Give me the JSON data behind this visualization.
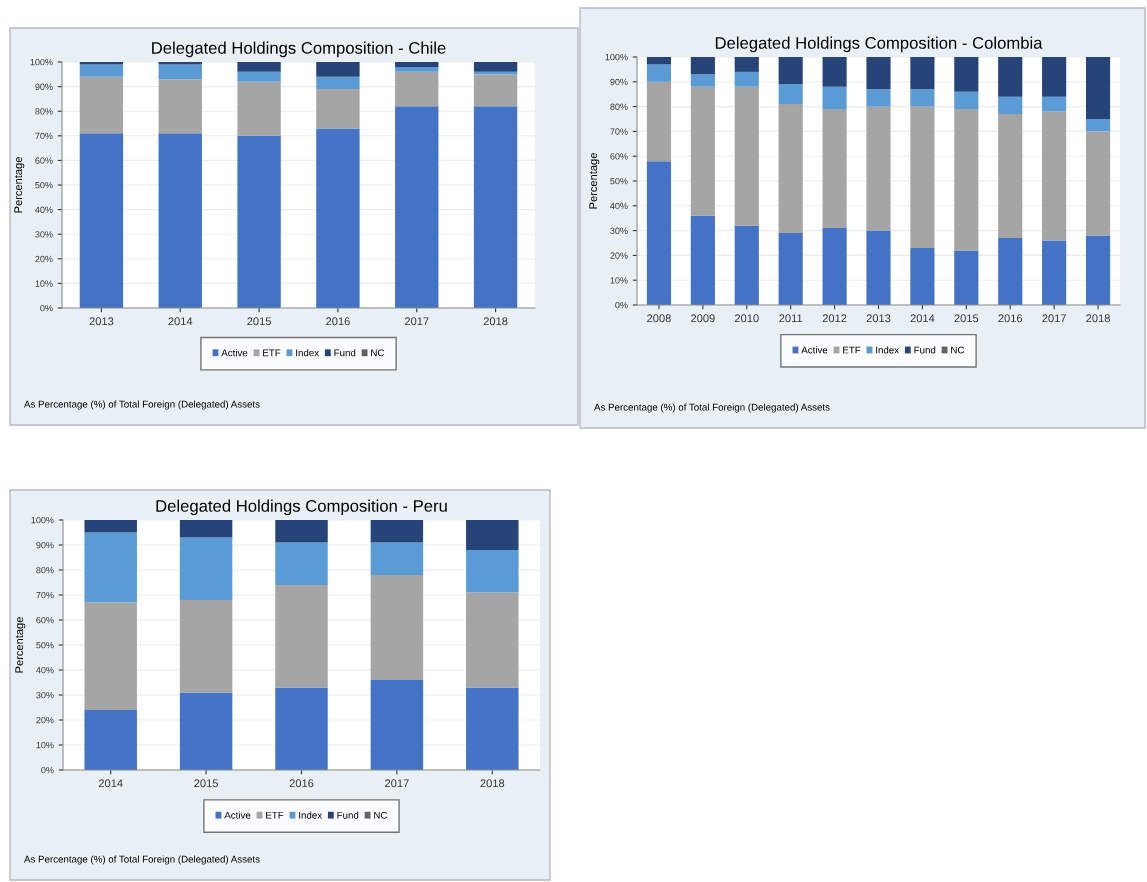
{
  "chart_data": [
    {
      "type": "bar",
      "stacked": true,
      "title": "Delegated Holdings Composition - Chile",
      "ylabel": "Percentage",
      "categories": [
        "2013",
        "2014",
        "2015",
        "2016",
        "2017",
        "2018"
      ],
      "series": [
        {
          "name": "Active",
          "color": "#4472c4",
          "values": [
            71,
            71,
            70,
            73,
            82,
            82
          ]
        },
        {
          "name": "ETF",
          "color": "#a5a5a5",
          "values": [
            23,
            22,
            22,
            16,
            14,
            13
          ]
        },
        {
          "name": "Index",
          "color": "#5b9bd5",
          "values": [
            5,
            6,
            4,
            5,
            2,
            1
          ]
        },
        {
          "name": "Fund",
          "color": "#264478",
          "values": [
            1,
            1,
            4,
            6,
            2,
            4
          ]
        },
        {
          "name": "NC",
          "color": "#636363",
          "values": [
            0,
            0,
            0,
            0,
            0,
            0
          ]
        }
      ],
      "ylim": [
        0,
        100
      ],
      "yticks": [
        {
          "value": 0,
          "label": "0%"
        },
        {
          "value": 10,
          "label": "10%"
        },
        {
          "value": 20,
          "label": "20%"
        },
        {
          "value": 30,
          "label": "30%"
        },
        {
          "value": 40,
          "label": "40%"
        },
        {
          "value": 50,
          "label": "50%"
        },
        {
          "value": 60,
          "label": "60%"
        },
        {
          "value": 70,
          "label": "70%"
        },
        {
          "value": 80,
          "label": "80%"
        },
        {
          "value": 90,
          "label": "90%"
        },
        {
          "value": 100,
          "label": "100%"
        }
      ],
      "grid": "y",
      "legend": "bottom",
      "annotations": [
        "As Percentage (%) of Total Foreign (Delegated) Assets"
      ]
    },
    {
      "type": "bar",
      "stacked": true,
      "title": "Delegated Holdings Composition - Colombia",
      "ylabel": "Percentage",
      "categories": [
        "2008",
        "2009",
        "2010",
        "2011",
        "2012",
        "2013",
        "2014",
        "2015",
        "2016",
        "2017",
        "2018"
      ],
      "series": [
        {
          "name": "Active",
          "color": "#4472c4",
          "values": [
            58,
            36,
            32,
            29,
            31,
            30,
            23,
            22,
            27,
            26,
            28
          ]
        },
        {
          "name": "ETF",
          "color": "#a5a5a5",
          "values": [
            32,
            52,
            56,
            52,
            48,
            50,
            57,
            57,
            50,
            52,
            42
          ]
        },
        {
          "name": "Index",
          "color": "#5b9bd5",
          "values": [
            7,
            5,
            6,
            8,
            9,
            7,
            7,
            7,
            7,
            6,
            5
          ]
        },
        {
          "name": "Fund",
          "color": "#264478",
          "values": [
            3,
            7,
            6,
            11,
            12,
            13,
            13,
            14,
            16,
            16,
            25
          ]
        },
        {
          "name": "NC",
          "color": "#636363",
          "values": [
            0,
            0,
            0,
            0,
            0,
            0,
            0,
            0,
            0,
            0,
            0
          ]
        }
      ],
      "ylim": [
        0,
        100
      ],
      "yticks": [
        {
          "value": 0,
          "label": "0%"
        },
        {
          "value": 10,
          "label": "10%"
        },
        {
          "value": 20,
          "label": "20%"
        },
        {
          "value": 30,
          "label": "30%"
        },
        {
          "value": 40,
          "label": "40%"
        },
        {
          "value": 50,
          "label": "50%"
        },
        {
          "value": 60,
          "label": "60%"
        },
        {
          "value": 70,
          "label": "70%"
        },
        {
          "value": 80,
          "label": "80%"
        },
        {
          "value": 90,
          "label": "90%"
        },
        {
          "value": 100,
          "label": "100%"
        }
      ],
      "grid": "y",
      "legend": "bottom",
      "annotations": [
        "As Percentage (%) of Total Foreign (Delegated) Assets"
      ]
    },
    {
      "type": "bar",
      "stacked": true,
      "title": "Delegated Holdings Composition - Peru",
      "ylabel": "Percentage",
      "categories": [
        "2014",
        "2015",
        "2016",
        "2017",
        "2018"
      ],
      "series": [
        {
          "name": "Active",
          "color": "#4472c4",
          "values": [
            24,
            31,
            33,
            36,
            33
          ]
        },
        {
          "name": "ETF",
          "color": "#a5a5a5",
          "values": [
            43,
            37,
            41,
            42,
            38
          ]
        },
        {
          "name": "Index",
          "color": "#5b9bd5",
          "values": [
            28,
            25,
            17,
            13,
            17
          ]
        },
        {
          "name": "Fund",
          "color": "#264478",
          "values": [
            5,
            7,
            9,
            9,
            12
          ]
        },
        {
          "name": "NC",
          "color": "#636363",
          "values": [
            0,
            0,
            0,
            0,
            0
          ]
        }
      ],
      "ylim": [
        0,
        100
      ],
      "yticks": [
        {
          "value": 0,
          "label": "0%"
        },
        {
          "value": 10,
          "label": "10%"
        },
        {
          "value": 20,
          "label": "20%"
        },
        {
          "value": 30,
          "label": "30%"
        },
        {
          "value": 40,
          "label": "40%"
        },
        {
          "value": 50,
          "label": "50%"
        },
        {
          "value": 60,
          "label": "60%"
        },
        {
          "value": 70,
          "label": "70%"
        },
        {
          "value": 80,
          "label": "80%"
        },
        {
          "value": 90,
          "label": "90%"
        },
        {
          "value": 100,
          "label": "100%"
        }
      ],
      "grid": "y",
      "legend": "bottom",
      "annotations": [
        "As Percentage (%) of Total Foreign (Delegated) Assets"
      ]
    }
  ]
}
